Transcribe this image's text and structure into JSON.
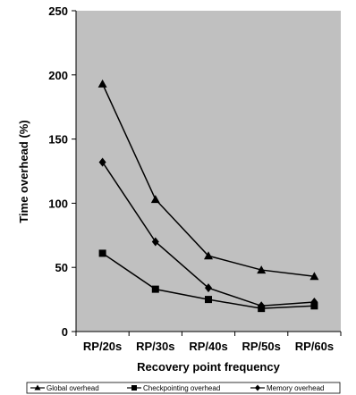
{
  "chart_data": {
    "type": "line",
    "categories": [
      "RP/20s",
      "RP/30s",
      "RP/40s",
      "RP/50s",
      "RP/60s"
    ],
    "series": [
      {
        "name": "Global overhead",
        "marker": "triangle",
        "values": [
          193,
          103,
          59,
          48,
          43
        ]
      },
      {
        "name": "Checkpointing overhead",
        "marker": "square",
        "values": [
          61,
          33,
          25,
          18,
          20
        ]
      },
      {
        "name": "Memory overhead",
        "marker": "diamond",
        "values": [
          132,
          70,
          34,
          20,
          23
        ]
      }
    ],
    "yticks": [
      "0",
      "50",
      "100",
      "150",
      "200",
      "250"
    ],
    "ylim": [
      0,
      250
    ],
    "title": "",
    "xlabel": "Recovery point frequency",
    "ylabel": "Time overhead (%)",
    "grid": false,
    "legend_position": "bottom",
    "plot_background": "#c0c0c0",
    "line_color": "#000000"
  }
}
